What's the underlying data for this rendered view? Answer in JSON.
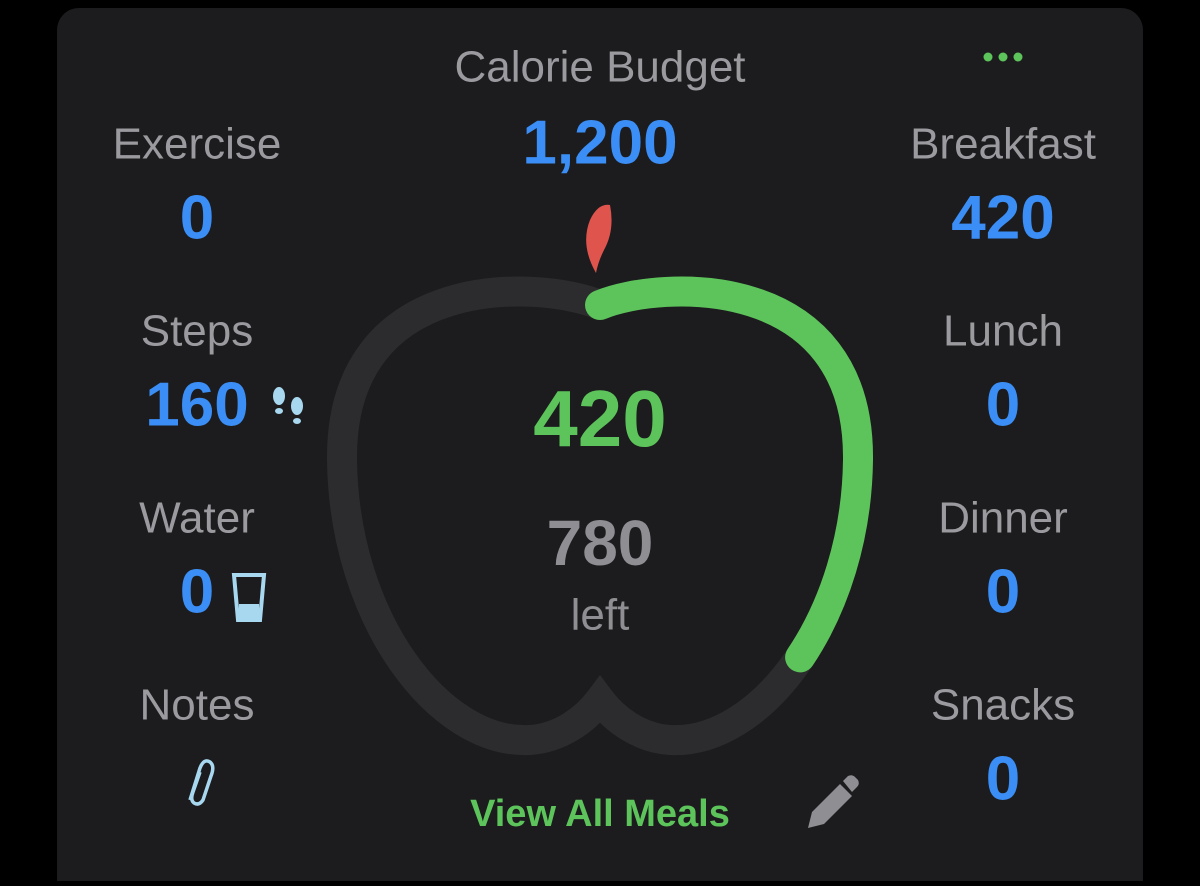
{
  "header": {
    "title": "Calorie Budget",
    "budget": {
      "value": 1200,
      "label": "1,200"
    }
  },
  "left": [
    {
      "label": "Exercise",
      "value": "0"
    },
    {
      "label": "Steps",
      "value": "160"
    },
    {
      "label": "Water",
      "value": "0"
    },
    {
      "label": "Notes"
    }
  ],
  "right": [
    {
      "label": "Breakfast",
      "value": "420"
    },
    {
      "label": "Lunch",
      "value": "0"
    },
    {
      "label": "Dinner",
      "value": "0"
    },
    {
      "label": "Snacks",
      "value": "0"
    }
  ],
  "center": {
    "consumed": 420,
    "remaining": "780",
    "remaining_label": "left"
  },
  "link": "View All Meals"
}
